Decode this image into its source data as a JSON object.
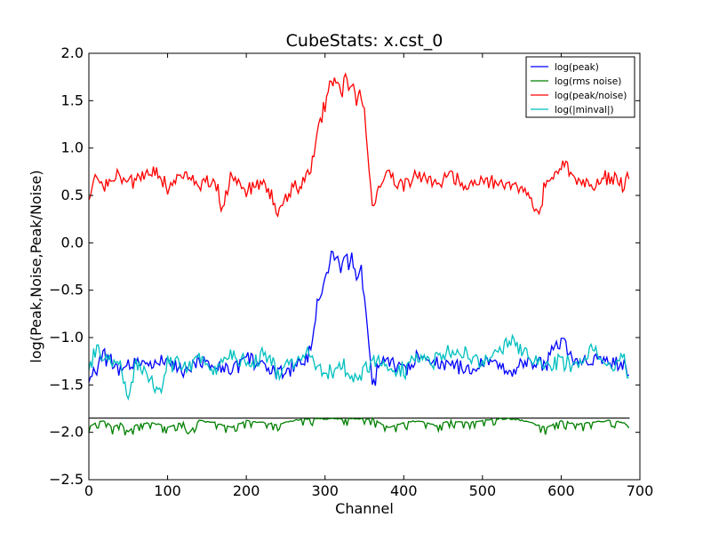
{
  "chart_data": {
    "type": "line",
    "title": "CubeStats: x.cst_0",
    "xlabel": "Channel",
    "ylabel": "log(Peak,Noise,Peak/Noise)",
    "xlim": [
      0,
      700
    ],
    "ylim": [
      -2.5,
      2.0
    ],
    "x_ticks": [
      0,
      100,
      200,
      300,
      400,
      500,
      600,
      700
    ],
    "y_ticks": [
      -2.5,
      -2.0,
      -1.5,
      -1.0,
      -0.5,
      0.0,
      0.5,
      1.0,
      1.5,
      2.0
    ],
    "x_tick_labels": [
      "0",
      "100",
      "200",
      "300",
      "400",
      "500",
      "600",
      "700"
    ],
    "y_tick_labels": [
      "−2.5",
      "−2.0",
      "−1.5",
      "−1.0",
      "−0.5",
      "0.0",
      "0.5",
      "1.0",
      "1.5",
      "2.0"
    ],
    "grid": false,
    "legend_position": "top-right",
    "n_channels": 688,
    "horizontal_line": {
      "y": -1.85,
      "color": "#000000"
    },
    "series": [
      {
        "name": "log(peak)",
        "color": "#0000ff",
        "x": [
          0,
          20,
          40,
          60,
          80,
          100,
          120,
          140,
          160,
          180,
          200,
          220,
          240,
          260,
          275,
          285,
          290,
          295,
          300,
          305,
          310,
          315,
          320,
          325,
          330,
          335,
          340,
          345,
          350,
          355,
          360,
          370,
          380,
          400,
          420,
          440,
          460,
          480,
          500,
          520,
          540,
          560,
          580,
          590,
          600,
          610,
          620,
          640,
          660,
          680,
          688
        ],
        "values": [
          -1.45,
          -1.2,
          -1.35,
          -1.25,
          -1.3,
          -1.25,
          -1.4,
          -1.2,
          -1.3,
          -1.35,
          -1.2,
          -1.3,
          -1.4,
          -1.3,
          -1.22,
          -1.05,
          -0.65,
          -0.55,
          -0.4,
          -0.25,
          -0.13,
          -0.17,
          -0.3,
          -0.1,
          -0.25,
          -0.12,
          -0.4,
          -0.25,
          -0.6,
          -1.0,
          -1.5,
          -1.3,
          -1.25,
          -1.35,
          -1.2,
          -1.3,
          -1.25,
          -1.35,
          -1.25,
          -1.3,
          -1.35,
          -1.25,
          -1.3,
          -1.1,
          -1.05,
          -1.15,
          -1.3,
          -1.2,
          -1.25,
          -1.3,
          -1.45
        ]
      },
      {
        "name": "log(rms noise)",
        "color": "#008000",
        "x": [
          0,
          10,
          20,
          30,
          40,
          50,
          60,
          80,
          100,
          120,
          125,
          140,
          160,
          180,
          200,
          220,
          240,
          260,
          280,
          300,
          320,
          340,
          360,
          380,
          400,
          420,
          440,
          460,
          480,
          500,
          520,
          540,
          560,
          580,
          600,
          620,
          640,
          660,
          680,
          686,
          688
        ],
        "values": [
          -1.95,
          -1.9,
          -1.88,
          -1.95,
          -1.9,
          -2.0,
          -1.92,
          -1.9,
          -1.95,
          -1.9,
          -2.03,
          -1.88,
          -1.9,
          -1.95,
          -1.88,
          -1.9,
          -1.92,
          -1.88,
          -1.86,
          -1.86,
          -1.86,
          -1.86,
          -1.86,
          -1.95,
          -1.9,
          -1.88,
          -1.93,
          -1.88,
          -1.9,
          -1.88,
          -1.86,
          -1.86,
          -1.9,
          -1.95,
          -1.88,
          -1.92,
          -1.9,
          -1.88,
          -1.9,
          -1.95,
          -2.15
        ]
      },
      {
        "name": "log(peak/noise)",
        "color": "#ff0000",
        "x": [
          0,
          10,
          20,
          40,
          60,
          80,
          100,
          120,
          140,
          160,
          170,
          180,
          200,
          220,
          240,
          250,
          260,
          275,
          285,
          290,
          295,
          300,
          305,
          310,
          315,
          320,
          325,
          330,
          335,
          340,
          345,
          350,
          355,
          360,
          370,
          380,
          400,
          420,
          440,
          460,
          480,
          500,
          520,
          540,
          560,
          570,
          580,
          600,
          620,
          640,
          660,
          680,
          688
        ],
        "values": [
          0.5,
          0.7,
          0.6,
          0.7,
          0.65,
          0.75,
          0.6,
          0.72,
          0.58,
          0.65,
          0.35,
          0.7,
          0.55,
          0.65,
          0.35,
          0.5,
          0.6,
          0.65,
          0.85,
          1.2,
          1.3,
          1.45,
          1.6,
          1.72,
          1.68,
          1.55,
          1.76,
          1.6,
          1.72,
          1.45,
          1.6,
          1.4,
          0.9,
          0.35,
          0.6,
          0.72,
          0.6,
          0.7,
          0.62,
          0.7,
          0.6,
          0.68,
          0.62,
          0.58,
          0.55,
          0.3,
          0.6,
          0.83,
          0.7,
          0.6,
          0.7,
          0.62,
          0.72
        ]
      },
      {
        "name": "log(|minval|)",
        "color": "#00bfbf",
        "x": [
          0,
          10,
          20,
          40,
          50,
          60,
          80,
          90,
          100,
          120,
          140,
          160,
          180,
          200,
          220,
          240,
          260,
          280,
          300,
          320,
          340,
          360,
          380,
          400,
          420,
          440,
          460,
          480,
          500,
          520,
          540,
          560,
          580,
          600,
          620,
          640,
          660,
          680,
          688
        ],
        "values": [
          -1.3,
          -1.1,
          -1.25,
          -1.3,
          -1.6,
          -1.25,
          -1.45,
          -1.6,
          -1.25,
          -1.3,
          -1.2,
          -1.35,
          -1.2,
          -1.3,
          -1.2,
          -1.35,
          -1.25,
          -1.15,
          -1.4,
          -1.3,
          -1.45,
          -1.2,
          -1.3,
          -1.35,
          -1.2,
          -1.25,
          -1.15,
          -1.2,
          -1.25,
          -1.1,
          -1.05,
          -1.2,
          -1.3,
          -1.25,
          -1.3,
          -1.15,
          -1.3,
          -1.2,
          -1.6
        ]
      }
    ]
  }
}
